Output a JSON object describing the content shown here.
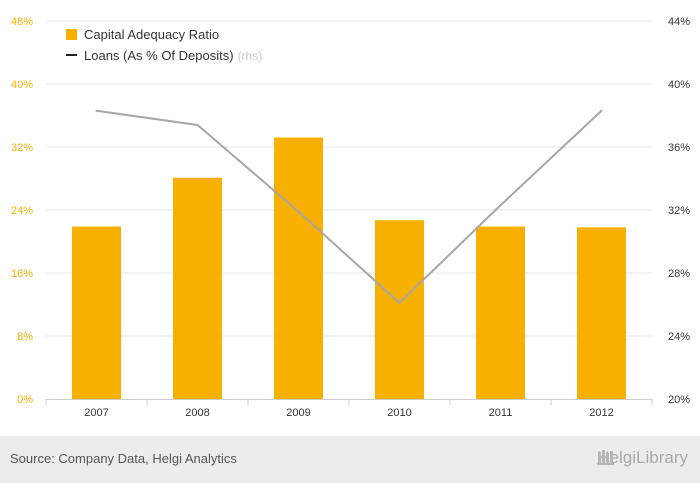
{
  "colors": {
    "bar": "#f7b000",
    "line": "#a6a6a6",
    "left_axis_text": "#f7b000",
    "right_axis_text": "#333333",
    "grid": "#e6e6e6",
    "footer_bg": "#ececec"
  },
  "legend": {
    "bar_label": "Capital Adequacy Ratio",
    "line_label": "Loans (As % Of Deposits)",
    "line_suffix": "(rhs)"
  },
  "footer": {
    "source": "Source: Company Data, Helgi Analytics",
    "brand": "HelgiLibrary"
  },
  "chart_data": {
    "type": "bar",
    "categories": [
      "2007",
      "2008",
      "2009",
      "2010",
      "2011",
      "2012"
    ],
    "series": [
      {
        "name": "Capital Adequacy Ratio",
        "type": "bar",
        "axis": "left",
        "values": [
          21.9,
          28.1,
          33.2,
          22.7,
          21.9,
          21.8
        ]
      },
      {
        "name": "Loans (As % Of Deposits)",
        "type": "line",
        "axis": "right",
        "values": [
          38.3,
          37.4,
          31.9,
          26.1,
          32.3,
          38.3
        ]
      }
    ],
    "left_axis": {
      "ticks": [
        "0%",
        "8%",
        "16%",
        "24%",
        "32%",
        "40%",
        "48%"
      ],
      "ylim": [
        0,
        48
      ]
    },
    "right_axis": {
      "ticks": [
        "20%",
        "24%",
        "28%",
        "32%",
        "36%",
        "40%",
        "44%"
      ],
      "ylim": [
        20,
        44
      ]
    },
    "grid": true,
    "legend_position": "top-left"
  }
}
